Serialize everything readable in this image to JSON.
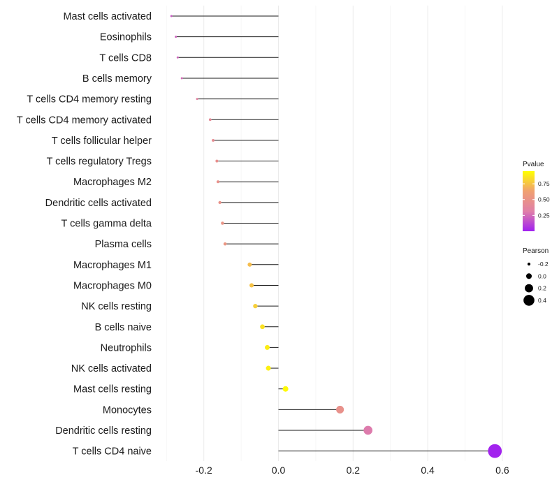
{
  "chart_data": {
    "type": "lollipop",
    "title": "",
    "xlabel": "",
    "ylabel": "",
    "xlim": [
      -0.3,
      0.62
    ],
    "x_ticks": [
      {
        "value": -0.2,
        "label": "-0.2"
      },
      {
        "value": 0.0,
        "label": "0.0"
      },
      {
        "value": 0.2,
        "label": "0.2"
      },
      {
        "value": 0.4,
        "label": "0.4"
      },
      {
        "value": 0.6,
        "label": "0.6"
      }
    ],
    "grid": true,
    "points": [
      {
        "cell": "Mast cells activated",
        "pearson": -0.287,
        "pvalue": 0.2
      },
      {
        "cell": "Eosinophils",
        "pearson": -0.275,
        "pvalue": 0.22
      },
      {
        "cell": "T cells CD8",
        "pearson": -0.27,
        "pvalue": 0.23
      },
      {
        "cell": "B cells memory",
        "pearson": -0.259,
        "pvalue": 0.25
      },
      {
        "cell": "T cells CD4 memory resting",
        "pearson": -0.218,
        "pvalue": 0.35
      },
      {
        "cell": "T cells CD4 memory activated",
        "pearson": -0.183,
        "pvalue": 0.42
      },
      {
        "cell": "T cells follicular helper",
        "pearson": -0.175,
        "pvalue": 0.44
      },
      {
        "cell": "T cells regulatory  Tregs",
        "pearson": -0.165,
        "pvalue": 0.47
      },
      {
        "cell": "Macrophages M2",
        "pearson": -0.162,
        "pvalue": 0.48
      },
      {
        "cell": "Dendritic cells activated",
        "pearson": -0.157,
        "pvalue": 0.49
      },
      {
        "cell": "T cells gamma delta",
        "pearson": -0.15,
        "pvalue": 0.51
      },
      {
        "cell": "Plasma cells",
        "pearson": -0.143,
        "pvalue": 0.53
      },
      {
        "cell": "Macrophages M1",
        "pearson": -0.077,
        "pvalue": 0.73
      },
      {
        "cell": "Macrophages M0",
        "pearson": -0.072,
        "pvalue": 0.75
      },
      {
        "cell": "NK cells resting",
        "pearson": -0.062,
        "pvalue": 0.79
      },
      {
        "cell": "B cells naive",
        "pearson": -0.043,
        "pvalue": 0.85
      },
      {
        "cell": "Neutrophils",
        "pearson": -0.03,
        "pvalue": 0.89
      },
      {
        "cell": "NK cells activated",
        "pearson": -0.027,
        "pvalue": 0.9
      },
      {
        "cell": "Mast cells resting",
        "pearson": 0.019,
        "pvalue": 0.93
      },
      {
        "cell": "Monocytes",
        "pearson": 0.165,
        "pvalue": 0.48
      },
      {
        "cell": "Dendritic cells resting",
        "pearson": 0.24,
        "pvalue": 0.3
      },
      {
        "cell": "T cells CD4 naive",
        "pearson": 0.58,
        "pvalue": 0.01
      }
    ],
    "legend_pvalue": {
      "title": "Pvalue",
      "ticks": [
        {
          "value": 0.75,
          "label": "0.75"
        },
        {
          "value": 0.5,
          "label": "0.50"
        },
        {
          "value": 0.25,
          "label": "0.25"
        }
      ],
      "range": [
        0.0,
        0.95
      ],
      "colors": [
        "#a020f0",
        "#e080a8",
        "#f0a070",
        "#ffff00"
      ],
      "position": "right"
    },
    "legend_pearson": {
      "title": "Pearson",
      "entries": [
        {
          "value": -0.2,
          "label": "-0.2"
        },
        {
          "value": 0.0,
          "label": "0.0"
        },
        {
          "value": 0.2,
          "label": "0.2"
        },
        {
          "value": 0.4,
          "label": "0.4"
        }
      ],
      "position": "right"
    }
  }
}
